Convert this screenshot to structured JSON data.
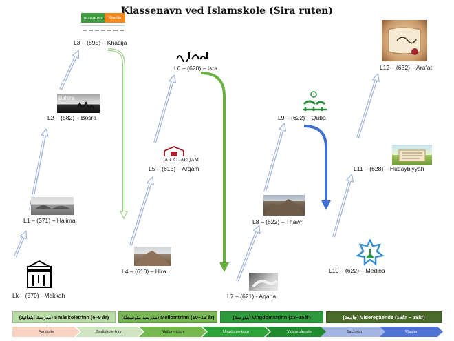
{
  "title": "Klassenavn ved Islamskole (Sira ruten)",
  "levels": {
    "lk": "Lk – (570) - Makkah",
    "l1": "L1 – (571) – Halima",
    "l2": "L2 – (582) – Bosra",
    "l3": "L3 – (595) – Khadija",
    "l4": "L4 – (610) – Hira",
    "l5": "L5 – (615) – Arqam",
    "l6": "L6 – (620) – Isra",
    "l7": "L7 – (621) - Aqaba",
    "l8": "L8 – (622) – Thawr",
    "l9": "L9 – (622) – Quba",
    "l10": "L10 – (622) – Medina",
    "l11": "L11 – (628) – Hudaybiyyah",
    "l12": "L12 – (632) – Arafat"
  },
  "image_text": {
    "bahira": "Bahira",
    "muhammad": "MUHAMMAD",
    "khadija": "Khadija",
    "dar_al_arqam": "DAR AL-ARQAM"
  },
  "stages": [
    {
      "label": "(مدرسة ابتدائية) Småskoletrinn (6–9 år)",
      "color": "#b9dba6"
    },
    {
      "label": "(مدرسة متوسطة) Mellomtrinn (10–12 år)",
      "color": "#77b753"
    },
    {
      "label": "(مدرسة) Ungdomstrinn (13–15år)",
      "color": "#2f9a3c"
    },
    {
      "label": "(جامعة) Videregående (16år – 18år)",
      "color": "#4b6b2a"
    }
  ],
  "phases": [
    {
      "label": "Førskole",
      "color": "#f9d3c2"
    },
    {
      "label": "Småskole-trinn",
      "color": "#cfe5c2"
    },
    {
      "label": "Mellom-trinn",
      "color": "#74b84e"
    },
    {
      "label": "Ungdoms-trinn",
      "color": "#2ea33a"
    },
    {
      "label": "Videregående",
      "color": "#1f8a2e"
    },
    {
      "label": "Bachelor",
      "color": "#a3b5e2"
    },
    {
      "label": "Master",
      "color": "#4f74d6"
    }
  ],
  "colors": {
    "up_arrow": "#9fb3db",
    "k3_arrow": "#9fd08a",
    "l6_arrow": "#68b03f",
    "l9_arrow": "#3f6fd1"
  }
}
